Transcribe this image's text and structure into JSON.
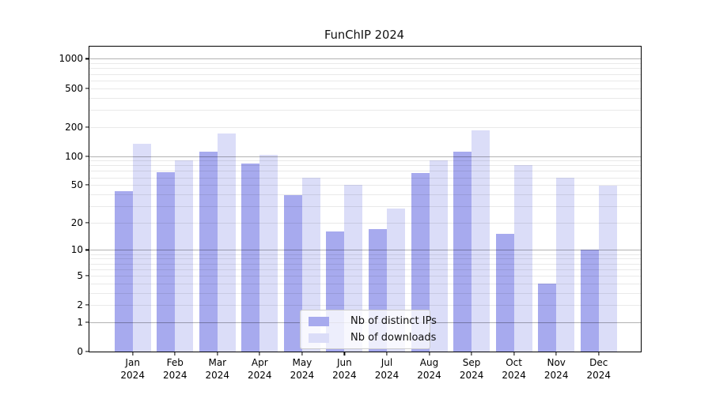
{
  "title": "FunChIP 2024",
  "legend": {
    "items": [
      {
        "label": "Nb of distinct IPs",
        "color": "#a7aaee"
      },
      {
        "label": "Nb of downloads",
        "color": "#dbddf8"
      }
    ]
  },
  "chart_data": {
    "type": "bar",
    "title": "FunChIP 2024",
    "categories": [
      "Jan 2024",
      "Feb 2024",
      "Mar 2024",
      "Apr 2024",
      "May 2024",
      "Jun 2024",
      "Jul 2024",
      "Aug 2024",
      "Sep 2024",
      "Oct 2024",
      "Nov 2024",
      "Dec 2024"
    ],
    "x": {
      "months": [
        "Jan",
        "Feb",
        "Mar",
        "Apr",
        "May",
        "Jun",
        "Jul",
        "Aug",
        "Sep",
        "Oct",
        "Nov",
        "Dec"
      ],
      "year": "2024"
    },
    "series": [
      {
        "name": "Nb of distinct IPs",
        "color": "#a7aaee",
        "values": [
          43,
          68,
          110,
          83,
          39,
          16,
          17,
          67,
          110,
          15,
          4,
          10
        ]
      },
      {
        "name": "Nb of downloads",
        "color": "#dbddf8",
        "values": [
          134,
          91,
          170,
          103,
          59,
          50,
          28,
          90,
          183,
          80,
          59,
          49
        ]
      }
    ],
    "y_axis": {
      "scale": "log10(1+y)",
      "ticks": [
        1000,
        500,
        200,
        100,
        50,
        20,
        10,
        5,
        2,
        1,
        0
      ],
      "ylim": [
        0,
        1330
      ]
    },
    "grid": {
      "major": [
        1,
        10,
        100,
        1000
      ],
      "minor": [
        2,
        3,
        4,
        5,
        6,
        7,
        8,
        9,
        20,
        30,
        40,
        50,
        60,
        70,
        80,
        90,
        200,
        300,
        400,
        500,
        600,
        700,
        800,
        900
      ],
      "on": true
    },
    "legend_position": "lower center-left inside plot",
    "xlabel": "",
    "ylabel": ""
  }
}
